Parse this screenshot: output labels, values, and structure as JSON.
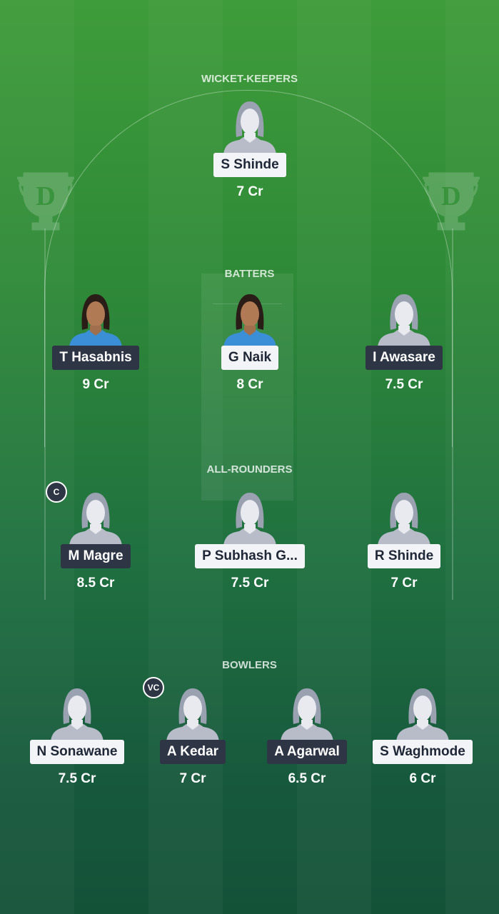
{
  "colors": {
    "team_a_label": "#2e3544",
    "team_b_label": "#f3f4f7",
    "pitch_top": "#3f9c3a",
    "pitch_bottom": "#145238"
  },
  "sections": [
    {
      "title": "WICKET-KEEPERS",
      "players": [
        {
          "name": "S Shinde",
          "price": "7 Cr",
          "team": "light"
        }
      ]
    },
    {
      "title": "BATTERS",
      "players": [
        {
          "name": "T Hasabnis",
          "price": "9 Cr",
          "team": "dark",
          "photo": true
        },
        {
          "name": "G Naik",
          "price": "8 Cr",
          "team": "light",
          "photo": true
        },
        {
          "name": "I Awasare",
          "price": "7.5 Cr",
          "team": "dark"
        }
      ]
    },
    {
      "title": "ALL-ROUNDERS",
      "players": [
        {
          "name": "M Magre",
          "price": "8.5 Cr",
          "team": "dark",
          "badge": "C"
        },
        {
          "name": "P Subhash G...",
          "price": "7.5 Cr",
          "team": "light"
        },
        {
          "name": "R Shinde",
          "price": "7 Cr",
          "team": "light"
        }
      ]
    },
    {
      "title": "BOWLERS",
      "players": [
        {
          "name": "N Sonawane",
          "price": "7.5 Cr",
          "team": "light"
        },
        {
          "name": "A Kedar",
          "price": "7 Cr",
          "team": "dark",
          "badge": "VC"
        },
        {
          "name": "A Agarwal",
          "price": "6.5 Cr",
          "team": "dark"
        },
        {
          "name": "S Waghmode",
          "price": "6 Cr",
          "team": "light"
        }
      ]
    }
  ],
  "watermark_logo": "D"
}
